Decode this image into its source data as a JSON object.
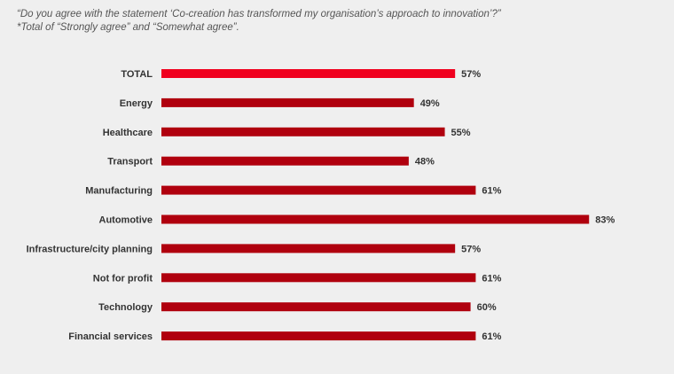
{
  "chart_data": {
    "type": "bar",
    "orientation": "horizontal",
    "title": "“Do you agree with the statement ‘Co-creation has transformed my organisation’s approach to innovation’?”",
    "subtitle": "*Total of “Strongly agree” and “Somewhat agree”.",
    "categories": [
      "TOTAL",
      "Energy",
      "Healthcare",
      "Transport",
      "Manufacturing",
      "Automotive",
      "Infrastructure/city planning",
      "Not for profit",
      "Technology",
      "Financial services"
    ],
    "values": [
      57,
      49,
      55,
      48,
      61,
      83,
      57,
      61,
      60,
      61
    ],
    "value_labels": [
      "57%",
      "49%",
      "55%",
      "48%",
      "61%",
      "83%",
      "57%",
      "61%",
      "60%",
      "61%"
    ],
    "xlim": [
      0,
      100
    ],
    "grid": false,
    "colors": {
      "total": "#f0001e",
      "bars": "#b0000e"
    }
  }
}
